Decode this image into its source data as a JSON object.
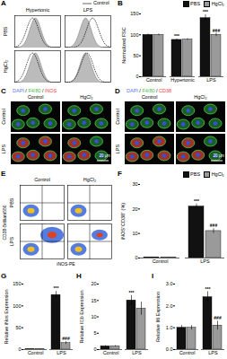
{
  "chart_data": [
    {
      "panel": "B",
      "type": "bar",
      "y_label": "Normalized FSC",
      "categories": [
        "Control",
        "Hypertonic",
        "LPS"
      ],
      "series": [
        {
          "name": "PBS",
          "color": "#111111",
          "values": [
            100,
            88,
            140
          ],
          "errors": [
            2,
            2,
            8
          ],
          "annotations": [
            null,
            "***",
            "***"
          ]
        },
        {
          "name": "HgCl₂",
          "color": "#9a9a9a",
          "values": [
            100,
            89,
            100
          ],
          "errors": [
            2,
            2,
            4
          ],
          "annotations": [
            null,
            null,
            "###"
          ]
        }
      ],
      "ylim": [
        0,
        150
      ],
      "yticks": [
        0,
        50,
        100,
        150
      ],
      "legend": "top-right"
    },
    {
      "panel": "F",
      "type": "bar",
      "y_label": "iNOS⁺CD38⁺ (%)",
      "categories": [
        "Control",
        "LPS"
      ],
      "series": [
        {
          "name": "PBS",
          "color": "#111111",
          "values": [
            0.3,
            21
          ],
          "errors": [
            0.1,
            1
          ],
          "annotations": [
            null,
            "***"
          ]
        },
        {
          "name": "HgCl₂",
          "color": "#9a9a9a",
          "values": [
            0.3,
            11
          ],
          "errors": [
            0.1,
            1
          ],
          "annotations": [
            null,
            "###"
          ]
        }
      ],
      "ylim": [
        0,
        30
      ],
      "yticks": [
        0,
        10,
        20,
        30
      ],
      "legend": "top-right"
    },
    {
      "panel": "G",
      "type": "bar",
      "y_label": "Relative iNos Expression",
      "categories": [
        "Control",
        "LPS"
      ],
      "series": [
        {
          "name": "PBS",
          "color": "#111111",
          "values": [
            1,
            125
          ],
          "errors": [
            0.2,
            8
          ],
          "annotations": [
            null,
            "***"
          ]
        },
        {
          "name": "HgCl₂",
          "color": "#9a9a9a",
          "values": [
            1,
            15
          ],
          "errors": [
            0.2,
            3
          ],
          "annotations": [
            null,
            "###"
          ]
        }
      ],
      "ylim": [
        0,
        150
      ],
      "yticks": [
        0,
        50,
        100,
        150
      ]
    },
    {
      "panel": "H",
      "type": "bar",
      "y_label": "Relative Il1b Expression",
      "categories": [
        "Control",
        "LPS"
      ],
      "series": [
        {
          "name": "PBS",
          "color": "#111111",
          "values": [
            1,
            15
          ],
          "errors": [
            0.2,
            1.5
          ],
          "annotations": [
            null,
            "***"
          ]
        },
        {
          "name": "HgCl₂",
          "color": "#9a9a9a",
          "values": [
            1,
            12.5
          ],
          "errors": [
            0.2,
            2
          ],
          "annotations": [
            null,
            null
          ]
        }
      ],
      "ylim": [
        0,
        20
      ],
      "yticks": [
        0,
        5,
        10,
        15,
        20
      ]
    },
    {
      "panel": "I",
      "type": "bar",
      "y_label": "Relative Il6 Expression",
      "categories": [
        "Control",
        "LPS"
      ],
      "series": [
        {
          "name": "PBS",
          "color": "#111111",
          "values": [
            1,
            2.4
          ],
          "errors": [
            0.1,
            0.25
          ],
          "annotations": [
            null,
            "***"
          ]
        },
        {
          "name": "HgCl₂",
          "color": "#9a9a9a",
          "values": [
            1,
            1.1
          ],
          "errors": [
            0.1,
            0.2
          ],
          "annotations": [
            null,
            "###"
          ]
        }
      ],
      "ylim": [
        0,
        3
      ],
      "yticks": [
        0,
        1,
        2,
        3
      ]
    }
  ],
  "panels": {
    "A": {
      "label": "A",
      "columns": [
        "Hypertonic",
        "LPS"
      ],
      "rows": [
        "PBS",
        "HgCl₂"
      ],
      "legend_entry": "Control"
    },
    "C": {
      "label": "C",
      "stain": "DAPI / F4/80 / iNOS",
      "stain_colors": [
        "#5a78ff",
        "#40c040",
        "#ff3b3b"
      ],
      "columns": [
        "Control",
        "HgCl₂"
      ],
      "rows": [
        "Control",
        "LPS"
      ],
      "scale_bar": "20 μm"
    },
    "D": {
      "label": "D",
      "stain": "DAPI / F4/80 / CD38",
      "stain_colors": [
        "#5a78ff",
        "#40c040",
        "#ff3b3b"
      ],
      "columns": [
        "Control",
        "HgCl₂"
      ],
      "rows": [
        "Control",
        "LPS"
      ],
      "scale_bar": "20 μm"
    },
    "E": {
      "label": "E",
      "columns": [
        "Control",
        "HgCl₂"
      ],
      "rows": [
        "PBS",
        "LPS"
      ],
      "x_label": "iNOS-PE",
      "y_label": "CD38-Brilliant550"
    }
  }
}
